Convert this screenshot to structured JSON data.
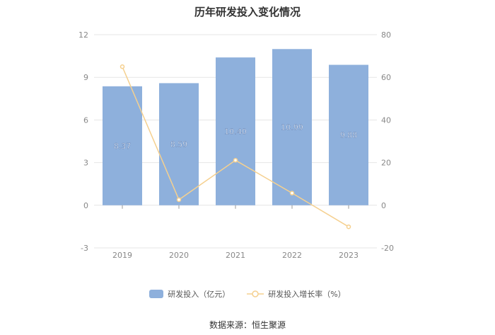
{
  "title": "历年研发投入变化情况",
  "source": "数据来源：恒生聚源",
  "colors": {
    "bar": "#8eb0dc",
    "line": "#f5d08f",
    "grid": "#e6e6e6",
    "axis_text": "#888888"
  },
  "chart_data": {
    "type": "bar",
    "title": "历年研发投入变化情况",
    "categories": [
      "2019",
      "2020",
      "2021",
      "2022",
      "2023"
    ],
    "series": [
      {
        "name": "研发投入（亿元）",
        "type": "bar",
        "axis": "left",
        "values": [
          8.37,
          8.59,
          10.4,
          10.99,
          9.88
        ],
        "labels": [
          "8.37",
          "8.59",
          "10.40",
          "10.99",
          "9.88"
        ]
      },
      {
        "name": "研发投入增长率（%）",
        "type": "line",
        "axis": "right",
        "values": [
          65,
          2.6,
          21.1,
          5.7,
          -10.1
        ]
      }
    ],
    "y_left": {
      "min": -3,
      "max": 12,
      "ticks": [
        -3,
        0,
        3,
        6,
        9,
        12
      ]
    },
    "y_right": {
      "min": -20,
      "max": 80,
      "ticks": [
        -20,
        0,
        20,
        40,
        60,
        80
      ]
    },
    "grid": true,
    "legend_position": "bottom"
  }
}
